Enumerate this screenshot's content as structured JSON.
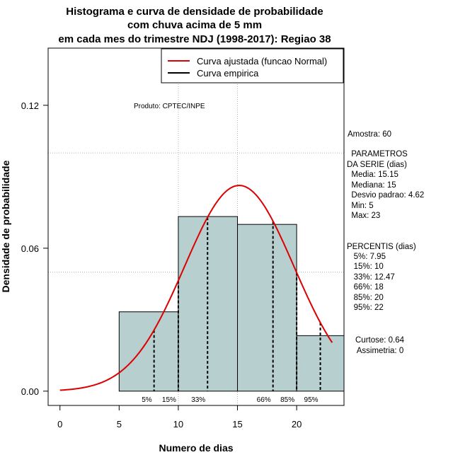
{
  "chart_data": {
    "type": "bar",
    "title_lines": [
      "Histograma e curva de densidade de probabilidade",
      "com chuva acima de 5 mm",
      "em cada mes do trimestre NDJ (1998-2017): Regiao 38"
    ],
    "xlabel": "Numero de dias",
    "ylabel": "Densidade de probabilidade",
    "xlim": [
      -1,
      24
    ],
    "ylim": [
      -0.006,
      0.144
    ],
    "x_ticks": [
      0,
      5,
      10,
      15,
      20
    ],
    "y_ticks": [
      0.0,
      0.06,
      0.12
    ],
    "y_tick_labels": [
      "0.00",
      "0.06",
      "0.12"
    ],
    "grid": true,
    "grid_x": [
      10,
      15
    ],
    "grid_y": [
      0.05,
      0.1
    ],
    "bin_edges": [
      5,
      10,
      15,
      20,
      24
    ],
    "bin_densities": [
      0.0333,
      0.0733,
      0.07,
      0.0233
    ],
    "bar_color": "#b8cfcf",
    "normal_fit": {
      "mean": 15.15,
      "sd": 4.62,
      "x_from": 0,
      "x_to": 23,
      "color": "#dd0000"
    },
    "percentile_lines": [
      {
        "label": "5%",
        "x": 7.95
      },
      {
        "label": "15%",
        "x": 10
      },
      {
        "label": "33%",
        "x": 12.47
      },
      {
        "label": "66%",
        "x": 18
      },
      {
        "label": "85%",
        "x": 20
      },
      {
        "label": "95%",
        "x": 22
      }
    ],
    "legend": {
      "position": "top-right",
      "entries": [
        {
          "label": "Curva ajustada (funcao Normal)",
          "color": "#dd0000"
        },
        {
          "label": "Curva empirica",
          "color": "#000000"
        }
      ]
    },
    "annotation": "Produto: CPTEC/INPE"
  },
  "stats_panel": {
    "lines": [
      "Amostra: 60",
      " PARAMETROS",
      "DA SERIE (dias)",
      "  Media: 15.15",
      "  Mediana: 15",
      "  Desvio padrao: 4.62",
      "  Min: 5",
      "  Max: 23",
      "PERCENTIS (dias)",
      "   5%: 7.95",
      "   15%: 10",
      "   33%: 12.47",
      "   66%: 18",
      "   85%: 20",
      "   95%: 22",
      "Curtose: 0.64",
      "  Assimetria: 0"
    ]
  }
}
